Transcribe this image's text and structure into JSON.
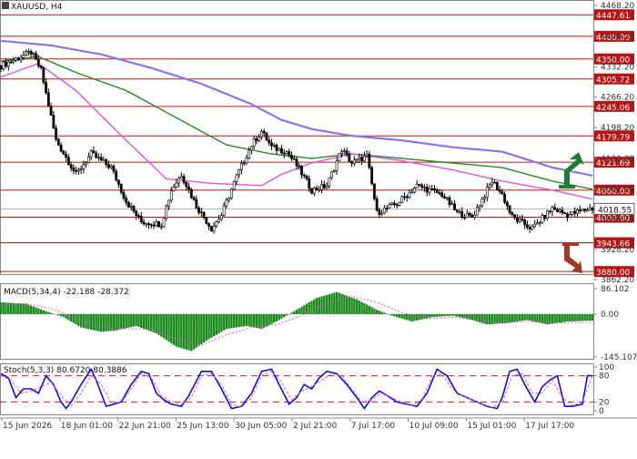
{
  "chart_data": [
    {
      "type": "candlestick",
      "title": "XAUUSD, H4",
      "ylim": [
        3862.2,
        4468.2
      ],
      "y_ticks": [
        "4468.20",
        "4400.25",
        "4332.20",
        "4266.20",
        "4198.20",
        "4130.20",
        "4062.20",
        "3996.20",
        "3928.20",
        "3862.20"
      ],
      "levels": [
        {
          "label": "4447.61",
          "value": 4447.61
        },
        {
          "label": "4400.00",
          "value": 4400.0
        },
        {
          "label": "4350.00",
          "value": 4350.0
        },
        {
          "label": "4305.72",
          "value": 4305.72
        },
        {
          "label": "4245.06",
          "value": 4245.06
        },
        {
          "label": "4179.79",
          "value": 4179.79
        },
        {
          "label": "4121.69",
          "value": 4121.69
        },
        {
          "label": "4060.00",
          "value": 4060.0
        },
        {
          "label": "4000.00",
          "value": 4000.0
        },
        {
          "label": "3943.66",
          "value": 3943.66
        },
        {
          "label": "3880.00",
          "value": 3880.0
        }
      ],
      "current_price": {
        "label": "4018.55",
        "value": 4018.55
      },
      "x_labels": [
        "15 Jun 2026",
        "18 Jun 01:00",
        "22 Jun 21:00",
        "25 Jun 13:00",
        "30 Jun 05:00",
        "2 Jul 21:00",
        "7 Jul 17:00",
        "10 Jul 09:00",
        "15 Jul 01:00",
        "17 Jul 17:00"
      ],
      "close_path": [
        [
          0,
          4335
        ],
        [
          6,
          4350
        ],
        [
          12,
          4365
        ],
        [
          16,
          4325
        ],
        [
          22,
          4170
        ],
        [
          30,
          4095
        ],
        [
          36,
          4140
        ],
        [
          44,
          4110
        ],
        [
          50,
          4035
        ],
        [
          56,
          3990
        ],
        [
          64,
          3985
        ],
        [
          68,
          4060
        ],
        [
          72,
          4095
        ],
        [
          78,
          4025
        ],
        [
          84,
          3975
        ],
        [
          88,
          4005
        ],
        [
          94,
          4090
        ],
        [
          100,
          4160
        ],
        [
          104,
          4190
        ],
        [
          108,
          4155
        ],
        [
          114,
          4145
        ],
        [
          118,
          4115
        ],
        [
          124,
          4060
        ],
        [
          130,
          4070
        ],
        [
          136,
          4150
        ],
        [
          140,
          4120
        ],
        [
          146,
          4135
        ],
        [
          150,
          4010
        ],
        [
          158,
          4030
        ],
        [
          166,
          4070
        ],
        [
          176,
          4050
        ],
        [
          182,
          4010
        ],
        [
          188,
          4000
        ],
        [
          196,
          4080
        ],
        [
          200,
          4050
        ],
        [
          204,
          4000
        ],
        [
          212,
          3975
        ],
        [
          220,
          4020
        ],
        [
          226,
          4005
        ],
        [
          232,
          4015
        ],
        [
          236,
          4020
        ]
      ],
      "moving_averages": [
        {
          "color": "#8878e6",
          "path": [
            [
              0,
              4390
            ],
            [
              20,
              4380
            ],
            [
              40,
              4360
            ],
            [
              60,
              4330
            ],
            [
              80,
              4295
            ],
            [
              100,
              4250
            ],
            [
              112,
              4215
            ],
            [
              124,
              4195
            ],
            [
              140,
              4180
            ],
            [
              160,
              4170
            ],
            [
              180,
              4155
            ],
            [
              200,
              4145
            ],
            [
              220,
              4110
            ],
            [
              236,
              4092
            ]
          ]
        },
        {
          "color": "#228b22",
          "path": [
            [
              0,
              4345
            ],
            [
              15,
              4355
            ],
            [
              30,
              4320
            ],
            [
              50,
              4280
            ],
            [
              70,
              4220
            ],
            [
              90,
              4160
            ],
            [
              108,
              4140
            ],
            [
              124,
              4130
            ],
            [
              140,
              4140
            ],
            [
              160,
              4130
            ],
            [
              180,
              4120
            ],
            [
              200,
              4110
            ],
            [
              220,
              4080
            ],
            [
              236,
              4062
            ]
          ]
        },
        {
          "color": "#dd55dd",
          "path": [
            [
              0,
              4310
            ],
            [
              15,
              4340
            ],
            [
              30,
              4280
            ],
            [
              50,
              4170
            ],
            [
              66,
              4085
            ],
            [
              84,
              4075
            ],
            [
              104,
              4070
            ],
            [
              112,
              4095
            ],
            [
              124,
              4120
            ],
            [
              140,
              4140
            ],
            [
              160,
              4125
            ],
            [
              180,
              4105
            ],
            [
              200,
              4080
            ],
            [
              220,
              4060
            ],
            [
              236,
              4040
            ]
          ]
        }
      ],
      "signals": [
        {
          "direction": "up",
          "color": "#1f7a3c"
        },
        {
          "direction": "down",
          "color": "#a03a2a"
        }
      ]
    },
    {
      "type": "bar",
      "title": "MACD(5,34,4) -22.188 -28.372",
      "ylim": [
        -145.107,
        86.102
      ],
      "y_ticks": [
        "86.102",
        "0.00",
        "-145.107"
      ],
      "color": "#1a8a1a",
      "signal_color": "#dd55dd",
      "histogram_path": [
        [
          0,
          40
        ],
        [
          10,
          35
        ],
        [
          18,
          10
        ],
        [
          25,
          -10
        ],
        [
          32,
          -45
        ],
        [
          40,
          -60
        ],
        [
          46,
          -55
        ],
        [
          54,
          -40
        ],
        [
          62,
          -65
        ],
        [
          70,
          -110
        ],
        [
          76,
          -125
        ],
        [
          82,
          -90
        ],
        [
          90,
          -50
        ],
        [
          98,
          -40
        ],
        [
          104,
          -50
        ],
        [
          110,
          -25
        ],
        [
          118,
          15
        ],
        [
          126,
          55
        ],
        [
          134,
          75
        ],
        [
          142,
          50
        ],
        [
          150,
          15
        ],
        [
          156,
          -5
        ],
        [
          164,
          -25
        ],
        [
          172,
          -10
        ],
        [
          180,
          -5
        ],
        [
          186,
          -15
        ],
        [
          194,
          -35
        ],
        [
          202,
          -30
        ],
        [
          210,
          -20
        ],
        [
          218,
          -35
        ],
        [
          226,
          -25
        ],
        [
          236,
          -22
        ]
      ],
      "signal_path": [
        [
          0,
          30
        ],
        [
          10,
          35
        ],
        [
          20,
          20
        ],
        [
          30,
          -15
        ],
        [
          40,
          -45
        ],
        [
          50,
          -50
        ],
        [
          60,
          -50
        ],
        [
          70,
          -85
        ],
        [
          80,
          -105
        ],
        [
          90,
          -70
        ],
        [
          100,
          -45
        ],
        [
          110,
          -35
        ],
        [
          120,
          -5
        ],
        [
          130,
          40
        ],
        [
          140,
          60
        ],
        [
          150,
          40
        ],
        [
          160,
          5
        ],
        [
          170,
          -15
        ],
        [
          180,
          -10
        ],
        [
          190,
          -20
        ],
        [
          200,
          -30
        ],
        [
          210,
          -25
        ],
        [
          220,
          -30
        ],
        [
          236,
          -28
        ]
      ]
    },
    {
      "type": "line",
      "title": "Stoch(5,3,3) 80.6720 80.3886",
      "ylim": [
        0,
        100
      ],
      "y_ticks": [
        "100",
        "80",
        "20",
        "0"
      ],
      "reference_lines": [
        80,
        20
      ],
      "series": [
        {
          "color": "#1010cc",
          "path": [
            [
              0,
              85
            ],
            [
              3,
              75
            ],
            [
              6,
              30
            ],
            [
              9,
              50
            ],
            [
              12,
              50
            ],
            [
              15,
              40
            ],
            [
              18,
              80
            ],
            [
              21,
              60
            ],
            [
              24,
              20
            ],
            [
              26,
              5
            ],
            [
              28,
              20
            ],
            [
              32,
              60
            ],
            [
              36,
              95
            ],
            [
              38,
              70
            ],
            [
              42,
              10
            ],
            [
              45,
              15
            ],
            [
              48,
              20
            ],
            [
              52,
              60
            ],
            [
              56,
              90
            ],
            [
              59,
              85
            ],
            [
              62,
              40
            ],
            [
              65,
              25
            ],
            [
              68,
              15
            ],
            [
              72,
              10
            ],
            [
              75,
              35
            ],
            [
              80,
              90
            ],
            [
              84,
              90
            ],
            [
              88,
              50
            ],
            [
              92,
              5
            ],
            [
              96,
              10
            ],
            [
              100,
              40
            ],
            [
              104,
              90
            ],
            [
              108,
              95
            ],
            [
              111,
              60
            ],
            [
              115,
              15
            ],
            [
              118,
              30
            ],
            [
              121,
              60
            ],
            [
              124,
              50
            ],
            [
              127,
              75
            ],
            [
              130,
              90
            ],
            [
              134,
              85
            ],
            [
              138,
              60
            ],
            [
              142,
              30
            ],
            [
              145,
              5
            ],
            [
              148,
              30
            ],
            [
              151,
              45
            ],
            [
              154,
              35
            ],
            [
              158,
              20
            ],
            [
              162,
              15
            ],
            [
              166,
              10
            ],
            [
              170,
              40
            ],
            [
              174,
              95
            ],
            [
              178,
              80
            ],
            [
              182,
              40
            ],
            [
              186,
              30
            ],
            [
              190,
              20
            ],
            [
              194,
              10
            ],
            [
              198,
              5
            ],
            [
              200,
              30
            ],
            [
              203,
              90
            ],
            [
              206,
              95
            ],
            [
              209,
              60
            ],
            [
              213,
              20
            ],
            [
              216,
              55
            ],
            [
              219,
              70
            ],
            [
              222,
              80
            ],
            [
              225,
              10
            ],
            [
              228,
              10
            ],
            [
              232,
              15
            ],
            [
              234,
              80
            ],
            [
              236,
              80
            ]
          ]
        },
        {
          "color": "#dd55dd",
          "path": [
            [
              0,
              80
            ],
            [
              4,
              70
            ],
            [
              8,
              40
            ],
            [
              12,
              45
            ],
            [
              16,
              55
            ],
            [
              20,
              65
            ],
            [
              24,
              35
            ],
            [
              28,
              10
            ],
            [
              32,
              40
            ],
            [
              36,
              80
            ],
            [
              40,
              60
            ],
            [
              44,
              20
            ],
            [
              48,
              18
            ],
            [
              52,
              50
            ],
            [
              56,
              85
            ],
            [
              60,
              75
            ],
            [
              64,
              35
            ],
            [
              68,
              20
            ],
            [
              72,
              15
            ],
            [
              76,
              30
            ],
            [
              80,
              80
            ],
            [
              84,
              85
            ],
            [
              88,
              60
            ],
            [
              92,
              15
            ],
            [
              96,
              8
            ],
            [
              100,
              30
            ],
            [
              104,
              80
            ],
            [
              108,
              90
            ],
            [
              112,
              65
            ],
            [
              116,
              25
            ],
            [
              120,
              45
            ],
            [
              124,
              55
            ],
            [
              128,
              70
            ],
            [
              132,
              85
            ],
            [
              136,
              80
            ],
            [
              140,
              50
            ],
            [
              144,
              20
            ],
            [
              148,
              25
            ],
            [
              152,
              40
            ],
            [
              156,
              30
            ],
            [
              160,
              20
            ],
            [
              164,
              12
            ],
            [
              168,
              25
            ],
            [
              172,
              80
            ],
            [
              176,
              85
            ],
            [
              180,
              50
            ],
            [
              184,
              35
            ],
            [
              188,
              25
            ],
            [
              192,
              15
            ],
            [
              196,
              8
            ],
            [
              200,
              20
            ],
            [
              204,
              80
            ],
            [
              208,
              85
            ],
            [
              212,
              40
            ],
            [
              216,
              40
            ],
            [
              220,
              70
            ],
            [
              224,
              30
            ],
            [
              228,
              12
            ],
            [
              232,
              20
            ],
            [
              236,
              80
            ]
          ]
        }
      ]
    }
  ]
}
